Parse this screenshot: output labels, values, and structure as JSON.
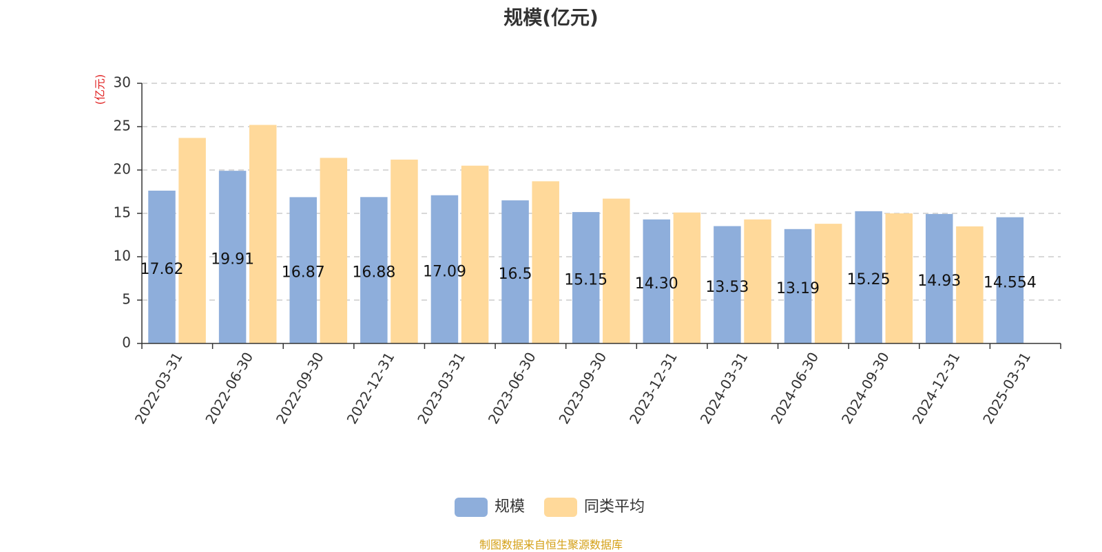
{
  "chart_data": {
    "type": "bar",
    "title": "规模(亿元)",
    "ylabel": "(亿元)",
    "xlabel": "",
    "categories": [
      "2022-03-31",
      "2022-06-30",
      "2022-09-30",
      "2022-12-31",
      "2023-03-31",
      "2023-06-30",
      "2023-09-30",
      "2023-12-31",
      "2024-03-31",
      "2024-06-30",
      "2024-09-30",
      "2024-12-31",
      "2025-03-31"
    ],
    "series": [
      {
        "name": "规模",
        "color": "#8eaedb",
        "values": [
          17.62,
          19.91,
          16.87,
          16.88,
          17.09,
          16.5,
          15.15,
          14.3,
          13.53,
          13.19,
          15.25,
          14.93,
          14.554
        ],
        "data_labels": [
          "17.62",
          "19.91",
          "16.87",
          "16.88",
          "17.09",
          "16.5",
          "15.15",
          "14.30",
          "13.53",
          "13.19",
          "15.25",
          "14.93",
          "14.554"
        ]
      },
      {
        "name": "同类平均",
        "color": "#ffd99a",
        "values": [
          23.7,
          25.2,
          21.4,
          21.2,
          20.5,
          18.7,
          16.7,
          15.1,
          14.3,
          13.8,
          15.0,
          13.5,
          null
        ]
      }
    ],
    "ylim": [
      0,
      30
    ],
    "yticks": [
      0,
      5,
      10,
      15,
      20,
      25,
      30
    ],
    "grid": true,
    "legend_position": "bottom-center",
    "source_note": "制图数据来自恒生聚源数据库",
    "colors": {
      "title": "#333333",
      "axis": "#333333",
      "ylabel": "#e02020",
      "grid": "#cccccc",
      "source_note": "#d4a017"
    }
  }
}
